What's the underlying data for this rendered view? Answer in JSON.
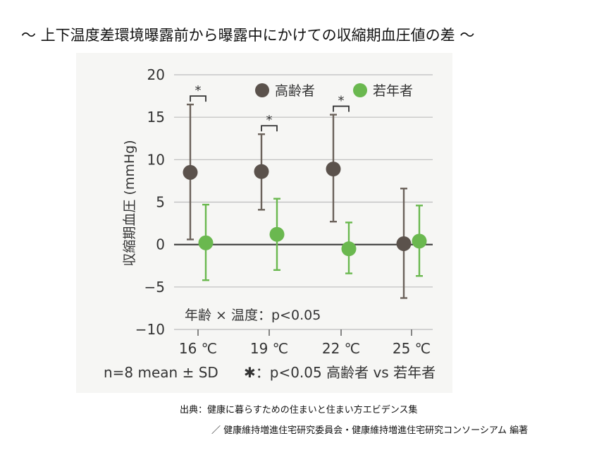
{
  "title": "～ 上下温度差環境曝露前から曝露中にかけての収縮期血圧値の差 ～",
  "chart_data": {
    "type": "scatter",
    "ylabel": "収縮期血圧 (mmHg)",
    "categories": [
      "16 ℃",
      "19 ℃",
      "22 ℃",
      "25 ℃"
    ],
    "ylim": [
      -10,
      20
    ],
    "yticks": [
      "20",
      "15",
      "10",
      "5",
      "0",
      "−5",
      "−10"
    ],
    "grid": true,
    "legend_position": "top-right",
    "series": [
      {
        "name": "高齢者",
        "color": "#5b524c",
        "errorbar_color": "#6b625b",
        "mean": [
          8.5,
          8.6,
          8.9,
          0.1
        ],
        "upper": [
          16.5,
          13.0,
          15.3,
          6.6
        ],
        "lower": [
          0.6,
          4.1,
          2.7,
          -6.3
        ]
      },
      {
        "name": "若年者",
        "color": "#6ab84f",
        "errorbar_color": "#6ab84f",
        "mean": [
          0.2,
          1.2,
          -0.5,
          0.4
        ],
        "upper": [
          4.7,
          5.4,
          2.6,
          4.6
        ],
        "lower": [
          -4.2,
          -3.0,
          -3.4,
          -3.7
        ]
      }
    ],
    "significance_marker": "*",
    "significant_categories": [
      "16 ℃",
      "19 ℃",
      "22 ℃"
    ],
    "annotation": "年齢 × 温度：p<0.05",
    "footnote_n": "n=8 mean ± SD",
    "footnote_sig": "✱：p<0.05 高齢者 vs 若年者"
  },
  "source": {
    "line1": "出典：健康に暮らすための住まいと住まい方エビデンス集",
    "line2": "／ 健康維持増進住宅研究委員会・健康維持増進住宅研究コンソーシアム 編著"
  }
}
